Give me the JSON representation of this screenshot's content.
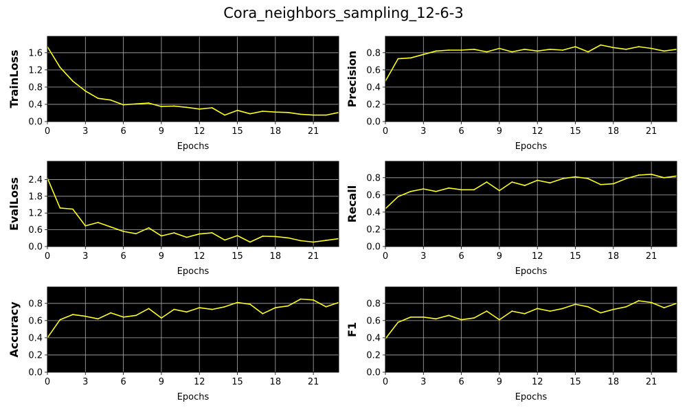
{
  "figure": {
    "title": "Cora_neighbors_sampling_12-6-3"
  },
  "style": {
    "plot_bg": "#000000",
    "line_color": "#ffff1a",
    "grid_color": "#b0b0b0"
  },
  "chart_data": [
    {
      "type": "line",
      "ylabel": "TrainLoss",
      "xlabel": "Epochs",
      "xlim": [
        0,
        23
      ],
      "ylim": [
        0,
        1.98
      ],
      "xticks": [
        0,
        3,
        6,
        9,
        12,
        15,
        18,
        21
      ],
      "yticks": [
        0.0,
        0.4,
        0.8,
        1.2,
        1.6
      ],
      "ytick_labels": [
        "0.0",
        "0.4",
        "0.8",
        "1.2",
        "1.6"
      ],
      "grid": true,
      "x": [
        0,
        1,
        2,
        3,
        4,
        5,
        6,
        7,
        8,
        9,
        10,
        11,
        12,
        13,
        14,
        15,
        16,
        17,
        18,
        19,
        20,
        21,
        22,
        23
      ],
      "values": [
        1.74,
        1.26,
        0.94,
        0.71,
        0.54,
        0.5,
        0.39,
        0.41,
        0.43,
        0.35,
        0.36,
        0.33,
        0.29,
        0.32,
        0.15,
        0.26,
        0.18,
        0.24,
        0.22,
        0.21,
        0.17,
        0.15,
        0.15,
        0.21
      ]
    },
    {
      "type": "line",
      "ylabel": "Precision",
      "xlabel": "Epochs",
      "xlim": [
        0,
        23
      ],
      "ylim": [
        0,
        0.99
      ],
      "xticks": [
        0,
        3,
        6,
        9,
        12,
        15,
        18,
        21
      ],
      "yticks": [
        0.0,
        0.2,
        0.4,
        0.6,
        0.8
      ],
      "ytick_labels": [
        "0.0",
        "0.2",
        "0.4",
        "0.6",
        "0.8"
      ],
      "grid": true,
      "x": [
        0,
        1,
        2,
        3,
        4,
        5,
        6,
        7,
        8,
        9,
        10,
        11,
        12,
        13,
        14,
        15,
        16,
        17,
        18,
        19,
        20,
        21,
        22,
        23
      ],
      "values": [
        0.47,
        0.73,
        0.74,
        0.78,
        0.82,
        0.83,
        0.83,
        0.84,
        0.81,
        0.85,
        0.81,
        0.84,
        0.82,
        0.84,
        0.83,
        0.87,
        0.81,
        0.89,
        0.86,
        0.84,
        0.87,
        0.85,
        0.82,
        0.84
      ]
    },
    {
      "type": "line",
      "ylabel": "EvalLoss",
      "xlabel": "Epochs",
      "xlim": [
        0,
        23
      ],
      "ylim": [
        0,
        3.05
      ],
      "xticks": [
        0,
        3,
        6,
        9,
        12,
        15,
        18,
        21
      ],
      "yticks": [
        0.0,
        0.6,
        1.2,
        1.8,
        2.4
      ],
      "ytick_labels": [
        "0.0",
        "0.6",
        "1.2",
        "1.8",
        "2.4"
      ],
      "grid": true,
      "x": [
        0,
        1,
        2,
        3,
        4,
        5,
        6,
        7,
        8,
        9,
        10,
        11,
        12,
        13,
        14,
        15,
        16,
        17,
        18,
        19,
        20,
        21,
        22,
        23
      ],
      "values": [
        2.45,
        1.38,
        1.34,
        0.74,
        0.86,
        0.7,
        0.54,
        0.46,
        0.67,
        0.38,
        0.49,
        0.33,
        0.45,
        0.49,
        0.23,
        0.39,
        0.16,
        0.37,
        0.36,
        0.31,
        0.21,
        0.16,
        0.22,
        0.28
      ]
    },
    {
      "type": "line",
      "ylabel": "Recall",
      "xlabel": "Epochs",
      "xlim": [
        0,
        23
      ],
      "ylim": [
        0,
        0.99
      ],
      "xticks": [
        0,
        3,
        6,
        9,
        12,
        15,
        18,
        21
      ],
      "yticks": [
        0.0,
        0.2,
        0.4,
        0.6,
        0.8
      ],
      "ytick_labels": [
        "0.0",
        "0.2",
        "0.4",
        "0.6",
        "0.8"
      ],
      "grid": true,
      "x": [
        0,
        1,
        2,
        3,
        4,
        5,
        6,
        7,
        8,
        9,
        10,
        11,
        12,
        13,
        14,
        15,
        16,
        17,
        18,
        19,
        20,
        21,
        22,
        23
      ],
      "values": [
        0.44,
        0.58,
        0.64,
        0.67,
        0.64,
        0.68,
        0.66,
        0.66,
        0.75,
        0.65,
        0.75,
        0.71,
        0.77,
        0.74,
        0.79,
        0.81,
        0.79,
        0.72,
        0.73,
        0.79,
        0.83,
        0.84,
        0.8,
        0.82
      ]
    },
    {
      "type": "line",
      "ylabel": "Accuracy",
      "xlabel": "Epochs",
      "xlim": [
        0,
        23
      ],
      "ylim": [
        0,
        0.99
      ],
      "xticks": [
        0,
        3,
        6,
        9,
        12,
        15,
        18,
        21
      ],
      "yticks": [
        0.0,
        0.2,
        0.4,
        0.6,
        0.8
      ],
      "ytick_labels": [
        "0.0",
        "0.2",
        "0.4",
        "0.6",
        "0.8"
      ],
      "grid": true,
      "x": [
        0,
        1,
        2,
        3,
        4,
        5,
        6,
        7,
        8,
        9,
        10,
        11,
        12,
        13,
        14,
        15,
        16,
        17,
        18,
        19,
        20,
        21,
        22,
        23
      ],
      "values": [
        0.4,
        0.61,
        0.67,
        0.65,
        0.62,
        0.69,
        0.64,
        0.66,
        0.74,
        0.63,
        0.73,
        0.7,
        0.75,
        0.73,
        0.76,
        0.81,
        0.79,
        0.68,
        0.75,
        0.77,
        0.85,
        0.84,
        0.76,
        0.81
      ]
    },
    {
      "type": "line",
      "ylabel": "F1",
      "xlabel": "Epochs",
      "xlim": [
        0,
        23
      ],
      "ylim": [
        0,
        0.99
      ],
      "xticks": [
        0,
        3,
        6,
        9,
        12,
        15,
        18,
        21
      ],
      "yticks": [
        0.0,
        0.2,
        0.4,
        0.6,
        0.8
      ],
      "ytick_labels": [
        "0.0",
        "0.2",
        "0.4",
        "0.6",
        "0.8"
      ],
      "grid": true,
      "x": [
        0,
        1,
        2,
        3,
        4,
        5,
        6,
        7,
        8,
        9,
        10,
        11,
        12,
        13,
        14,
        15,
        16,
        17,
        18,
        19,
        20,
        21,
        22,
        23
      ],
      "values": [
        0.39,
        0.58,
        0.64,
        0.64,
        0.62,
        0.66,
        0.61,
        0.63,
        0.71,
        0.61,
        0.71,
        0.68,
        0.74,
        0.71,
        0.74,
        0.79,
        0.76,
        0.69,
        0.73,
        0.76,
        0.83,
        0.81,
        0.75,
        0.8
      ]
    }
  ]
}
